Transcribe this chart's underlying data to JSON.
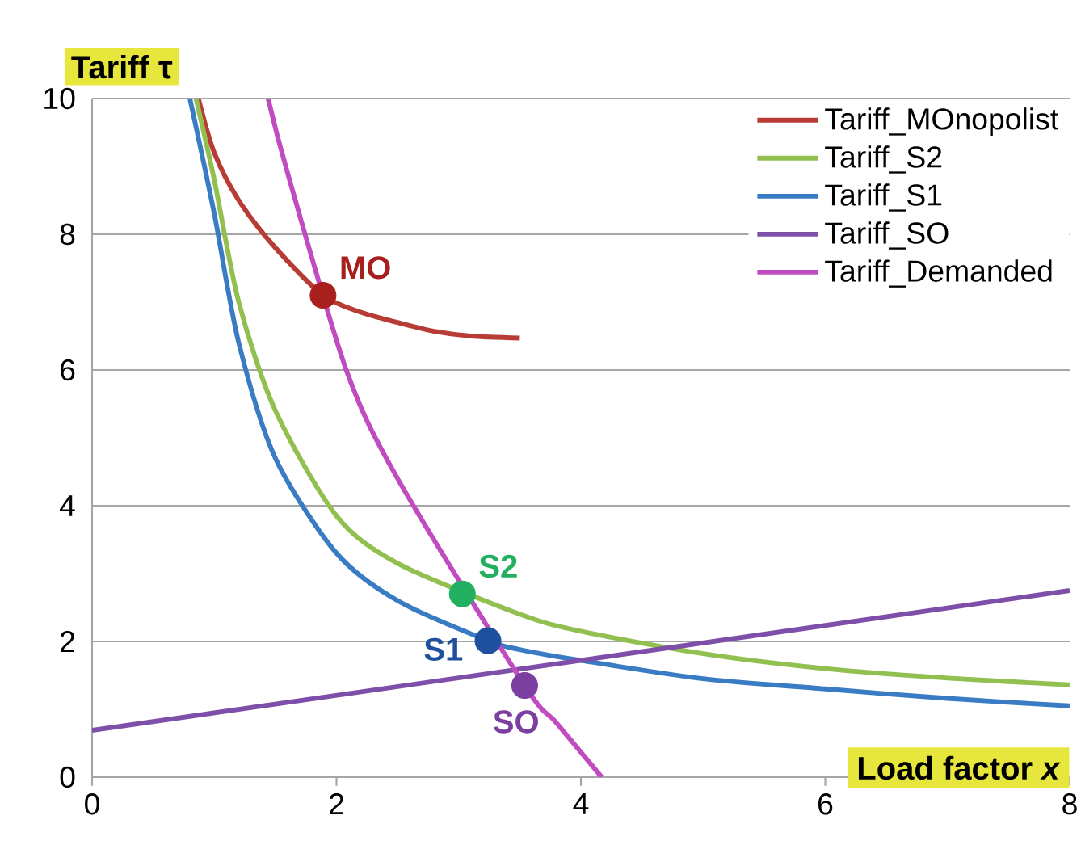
{
  "chart_data": {
    "type": "line",
    "xlabel": "Load factor *x*",
    "ylabel": "Tariff τ",
    "xlim": [
      0,
      8
    ],
    "ylim": [
      0,
      10
    ],
    "xticks": [
      0,
      2,
      4,
      6,
      8
    ],
    "yticks": [
      0,
      2,
      4,
      6,
      8,
      10
    ],
    "grid": "y",
    "legend": "top right",
    "marker": "none",
    "line_style": "solid",
    "series": [
      {
        "name": "Tariff_MOnopolist",
        "color": "#b83c36",
        "x": [
          0.87,
          1.0,
          1.2,
          1.5,
          1.89,
          2.2,
          2.5,
          2.8,
          3.1,
          3.5
        ],
        "values": [
          10,
          9.2,
          8.5,
          7.8,
          7.1,
          6.85,
          6.7,
          6.57,
          6.5,
          6.47
        ]
      },
      {
        "name": "Tariff_S2",
        "color": "#92c050",
        "x": [
          0.85,
          1.0,
          1.2,
          1.5,
          2.0,
          2.5,
          3.5,
          4.0,
          5.0,
          6.0,
          7.0,
          8.0
        ],
        "values": [
          10,
          8.8,
          7.0,
          5.4,
          3.85,
          3.15,
          2.4,
          2.15,
          1.82,
          1.6,
          1.46,
          1.36
        ]
      },
      {
        "name": "Tariff_S1",
        "color": "#3a7cc4",
        "x": [
          0.8,
          1.0,
          1.2,
          1.5,
          2.0,
          2.5,
          3.24,
          3.5,
          4.0,
          5.0,
          6.0,
          7.0,
          8.0
        ],
        "values": [
          10,
          8.3,
          6.4,
          4.7,
          3.3,
          2.6,
          2.01,
          1.88,
          1.72,
          1.45,
          1.3,
          1.16,
          1.05
        ]
      },
      {
        "name": "Tariff_SO",
        "color": "#7e4fa8",
        "x": [
          0,
          8
        ],
        "values": [
          0.69,
          2.75
        ]
      },
      {
        "name": "Tariff_Demanded",
        "color": "#c04cc0",
        "x": [
          1.44,
          1.6,
          2.08,
          2.5,
          3.54,
          3.8,
          4.17
        ],
        "values": [
          10,
          8.9,
          6.0,
          4.4,
          1.35,
          0.8,
          0
        ]
      },
      {
        "type": "scatter",
        "marker": "circle",
        "x": [
          1.89,
          3.03,
          3.24,
          3.54
        ],
        "values": [
          7.1,
          2.7,
          2.01,
          1.35
        ],
        "colors": [
          "#a8201e",
          "#22b060",
          "#1f4f9f",
          "#7a3fa0"
        ]
      }
    ],
    "annotations": [
      {
        "text": "MO",
        "x": 1.89,
        "y": 7.1
      },
      {
        "text": "S2",
        "x": 3.03,
        "y": 2.7
      },
      {
        "text": "S1",
        "x": 3.24,
        "y": 2.01
      },
      {
        "text": "SO",
        "x": 3.54,
        "y": 1.35
      }
    ]
  }
}
